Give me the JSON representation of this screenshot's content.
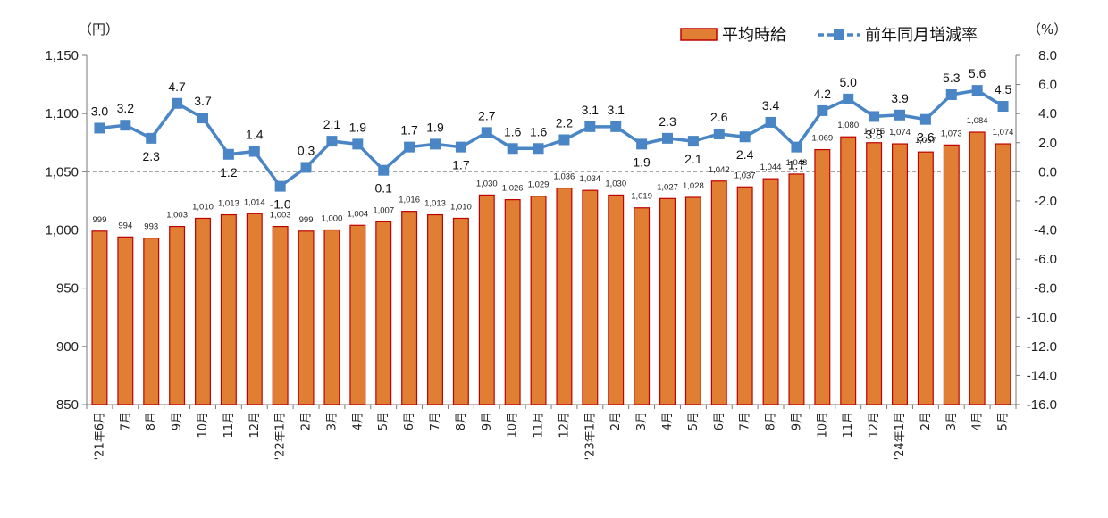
{
  "chart_data": {
    "type": "bar",
    "units": {
      "left": "（円）",
      "right": "（%）"
    },
    "left_axis": {
      "min": 850,
      "max": 1150,
      "ticks": [
        "850",
        "900",
        "950",
        "1,000",
        "1,050",
        "1,100",
        "1,150"
      ]
    },
    "right_axis": {
      "min": -16,
      "max": 8,
      "ticks": [
        "-16.0",
        "-14.0",
        "-12.0",
        "-10.0",
        "-8.0",
        "-6.0",
        "-4.0",
        "-2.0",
        "0.0",
        "2.0",
        "4.0",
        "6.0",
        "8.0"
      ]
    },
    "legend": {
      "position": "top-right",
      "entries": [
        "平均時給",
        "前年同月増減率"
      ]
    },
    "categories": [
      "'21年6月",
      "7月",
      "8月",
      "9月",
      "10月",
      "11月",
      "12月",
      "'22年1月",
      "2月",
      "3月",
      "4月",
      "5月",
      "6月",
      "7月",
      "8月",
      "9月",
      "10月",
      "11月",
      "12月",
      "'23年1月",
      "2月",
      "3月",
      "4月",
      "5月",
      "6月",
      "7月",
      "8月",
      "9月",
      "10月",
      "11月",
      "12月",
      "'24年1月",
      "2月",
      "3月",
      "4月",
      "5月"
    ],
    "series": [
      {
        "name": "平均時給",
        "type": "bar",
        "axis": "left",
        "color": "#E07E33",
        "border": "#C00000",
        "values": [
          999,
          994,
          993,
          1003,
          1010,
          1013,
          1014,
          1003,
          999,
          1000,
          1004,
          1007,
          1016,
          1013,
          1010,
          1030,
          1026,
          1029,
          1036,
          1034,
          1030,
          1019,
          1027,
          1028,
          1042,
          1037,
          1044,
          1048,
          1069,
          1080,
          1075,
          1074,
          1067,
          1073,
          1084,
          1074
        ],
        "labels": [
          "999",
          "994",
          "993",
          "1,003",
          "1,010",
          "1,013",
          "1,014",
          "1,003",
          "999",
          "1,000",
          "1,004",
          "1,007",
          "1,016",
          "1,013",
          "1,010",
          "1,030",
          "1,026",
          "1,029",
          "1,036",
          "1,034",
          "1,030",
          "1,019",
          "1,027",
          "1,028",
          "1,042",
          "1,037",
          "1,044",
          "1,048",
          "1,069",
          "1,080",
          "1,075",
          "1,074",
          "1,067",
          "1,073",
          "1,084",
          "1,074"
        ]
      },
      {
        "name": "前年同月増減率",
        "type": "line",
        "axis": "right",
        "color": "#4A86C5",
        "values": [
          3.0,
          3.2,
          2.3,
          4.7,
          3.7,
          1.2,
          1.4,
          -1.0,
          0.3,
          2.1,
          1.9,
          0.1,
          1.7,
          1.9,
          1.7,
          2.7,
          1.6,
          1.6,
          2.2,
          3.1,
          3.1,
          1.9,
          2.3,
          2.1,
          2.6,
          2.4,
          3.4,
          1.7,
          4.2,
          5.0,
          3.8,
          3.9,
          3.6,
          5.3,
          5.6,
          4.5
        ],
        "labels": [
          "3.0",
          "3.2",
          "2.3",
          "4.7",
          "3.7",
          "1.2",
          "1.4",
          "-1.0",
          "0.3",
          "2.1",
          "1.9",
          "0.1",
          "1.7",
          "1.9",
          "1.7",
          "2.7",
          "1.6",
          "1.6",
          "2.2",
          "3.1",
          "3.1",
          "1.9",
          "2.3",
          "2.1",
          "2.6",
          "2.4",
          "3.4",
          "1.7",
          "4.2",
          "5.0",
          "3.8",
          "3.9",
          "3.6",
          "5.3",
          "5.6",
          "4.5"
        ]
      }
    ],
    "zero_line": "dashed",
    "grid": false
  }
}
